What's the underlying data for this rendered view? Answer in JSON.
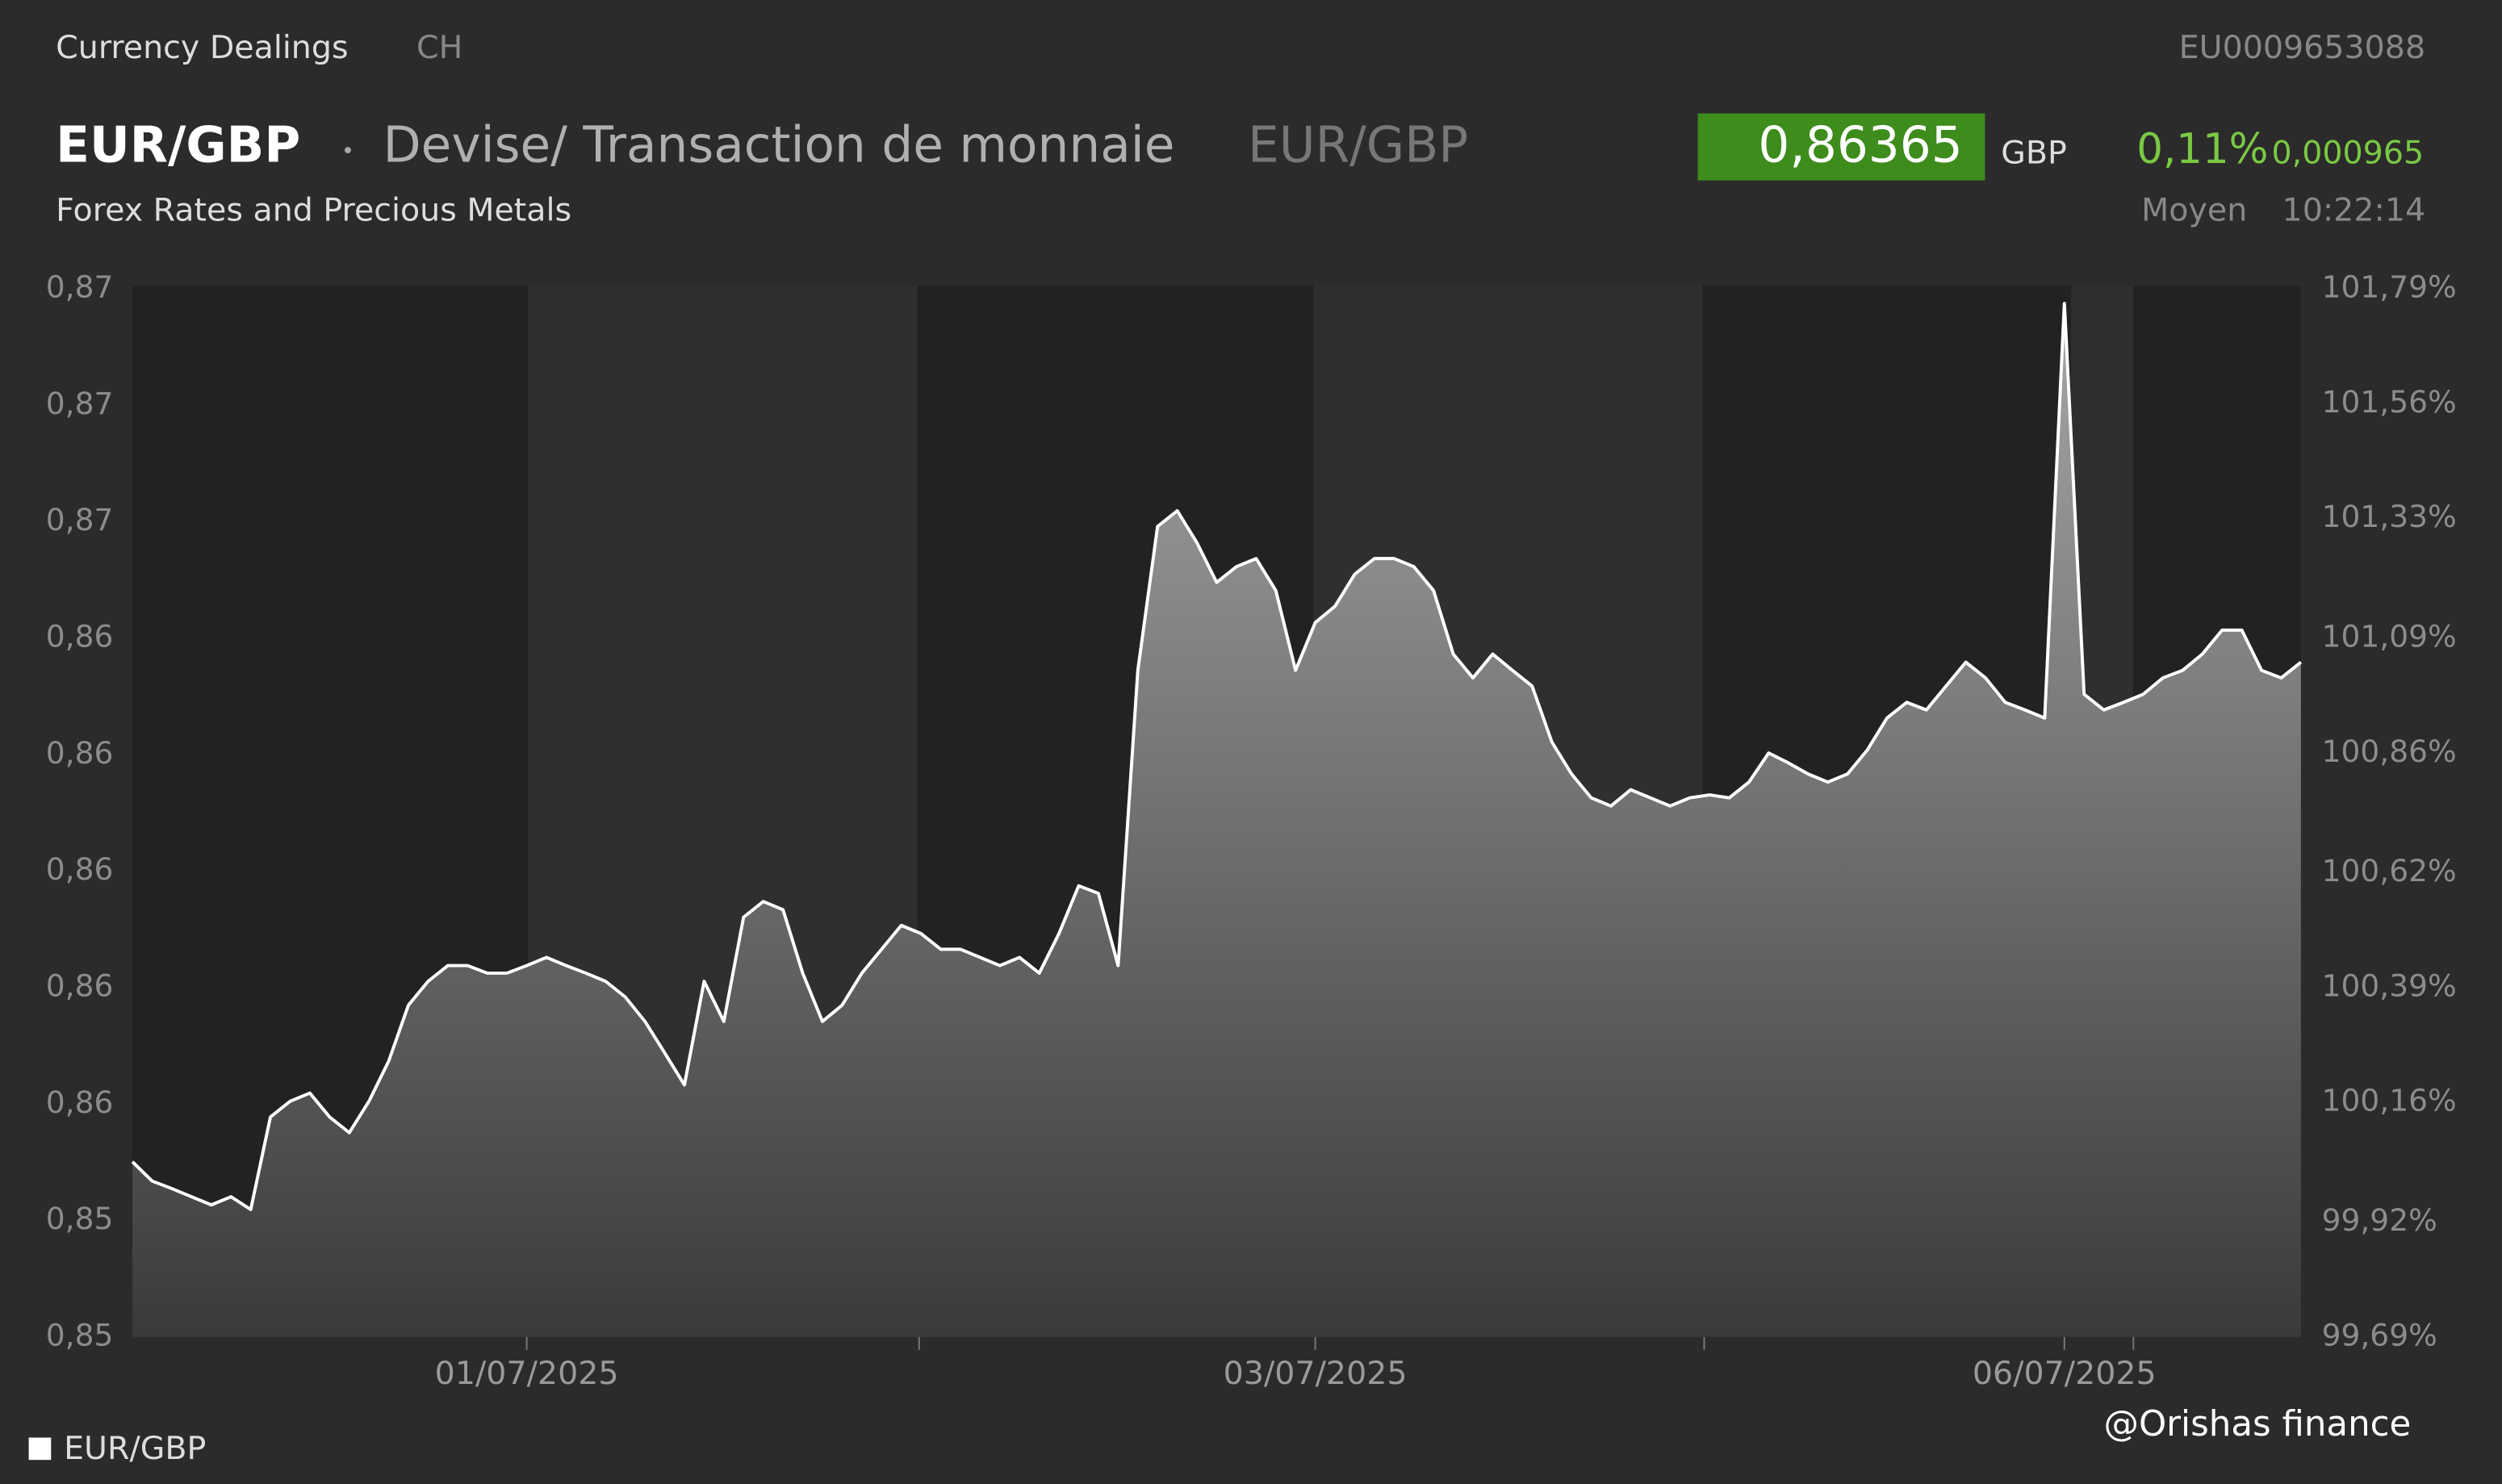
{
  "header": {
    "section": "Currency Dealings",
    "market": "CH",
    "isin": "EU0009653088",
    "symbol": "EUR/GBP",
    "description": "Devise/ Transaction de monnaie",
    "symbol_alt": "EUR/GBP",
    "subtitle": "Forex Rates and Precious Metals",
    "price": "0,86365",
    "currency": "GBP",
    "change_pct": "0,11%",
    "change_abs": "0,000965",
    "price_type": "Moyen",
    "time": "10:22:14"
  },
  "watermark": "@Orishas finance",
  "chart_data": {
    "type": "area",
    "categories": [
      null,
      null,
      null,
      null,
      null,
      null,
      null,
      null,
      null,
      null,
      null,
      null,
      null,
      null,
      null,
      null,
      null,
      null,
      null,
      null,
      "01/07/2025",
      null,
      null,
      null,
      null,
      null,
      null,
      null,
      null,
      null,
      null,
      null,
      null,
      null,
      null,
      null,
      null,
      null,
      null,
      null,
      null,
      null,
      null,
      null,
      null,
      null,
      null,
      null,
      null,
      null,
      null,
      null,
      null,
      null,
      null,
      null,
      null,
      null,
      null,
      null,
      "03/07/2025",
      null,
      null,
      null,
      null,
      null,
      null,
      null,
      null,
      null,
      null,
      null,
      null,
      null,
      null,
      null,
      null,
      null,
      null,
      null,
      null,
      null,
      null,
      null,
      null,
      null,
      null,
      null,
      null,
      null,
      null,
      null,
      null,
      null,
      null,
      null,
      null,
      null,
      "06/07/2025",
      null,
      null,
      null,
      null,
      null,
      null,
      null,
      null,
      null,
      null,
      null,
      null
    ],
    "series": [
      {
        "name": "EUR/GBP",
        "color": "#ffffff",
        "values": [
          0.85501,
          0.85468,
          0.85455,
          0.85441,
          0.85427,
          0.85441,
          0.85419,
          0.85578,
          0.85605,
          0.85619,
          0.85578,
          0.85551,
          0.85605,
          0.85674,
          0.8577,
          0.85811,
          0.85838,
          0.85838,
          0.85825,
          0.85825,
          0.85838,
          0.85852,
          0.85838,
          0.85825,
          0.85811,
          0.85784,
          0.85742,
          0.85688,
          0.85633,
          0.85811,
          0.85742,
          0.85921,
          0.85948,
          0.85934,
          0.85825,
          0.85742,
          0.8577,
          0.85825,
          0.85866,
          0.85907,
          0.85893,
          0.85866,
          0.85866,
          0.85852,
          0.85838,
          0.85852,
          0.85825,
          0.85893,
          0.85975,
          0.85962,
          0.85838,
          0.86345,
          0.86592,
          0.86619,
          0.86564,
          0.86496,
          0.86523,
          0.86537,
          0.86482,
          0.86345,
          0.86427,
          0.86455,
          0.8651,
          0.86537,
          0.86537,
          0.86523,
          0.86482,
          0.86373,
          0.86332,
          0.86373,
          0.86345,
          0.86318,
          0.86222,
          0.86167,
          0.86126,
          0.86112,
          0.8614,
          0.86126,
          0.86112,
          0.86126,
          0.86131,
          0.86126,
          0.86153,
          0.86203,
          0.86186,
          0.86167,
          0.86153,
          0.86167,
          0.86208,
          0.86263,
          0.8629,
          0.86277,
          0.86318,
          0.86359,
          0.86332,
          0.8629,
          0.86277,
          0.86263,
          0.86975,
          0.86304,
          0.86277,
          0.8629,
          0.86304,
          0.86332,
          0.86345,
          0.86373,
          0.86414,
          0.86414,
          0.86345,
          0.86332,
          0.86359
        ]
      }
    ],
    "ylim": [
      0.852,
      0.87
    ],
    "yticks": [
      {
        "value": 0.852,
        "label": "0,85"
      },
      {
        "value": 0.854,
        "label": "0,85"
      },
      {
        "value": 0.856,
        "label": "0,86"
      },
      {
        "value": 0.858,
        "label": "0,86"
      },
      {
        "value": 0.86,
        "label": "0,86"
      },
      {
        "value": 0.862,
        "label": "0,86"
      },
      {
        "value": 0.864,
        "label": "0,86"
      },
      {
        "value": 0.866,
        "label": "0,87"
      },
      {
        "value": 0.868,
        "label": "0,87"
      },
      {
        "value": 0.87,
        "label": "0,87"
      }
    ],
    "y2lim": [
      99.69,
      101.79
    ],
    "y2ticks": [
      {
        "value": 99.69,
        "label": "99,69%"
      },
      {
        "value": 99.92,
        "label": "99,92%"
      },
      {
        "value": 100.16,
        "label": "100,16%"
      },
      {
        "value": 100.39,
        "label": "100,39%"
      },
      {
        "value": 100.62,
        "label": "100,62%"
      },
      {
        "value": 100.86,
        "label": "100,86%"
      },
      {
        "value": 101.09,
        "label": "101,09%"
      },
      {
        "value": 101.33,
        "label": "101,33%"
      },
      {
        "value": 101.56,
        "label": "101,56%"
      },
      {
        "value": 101.79,
        "label": "101,79%"
      }
    ],
    "legend": "bottom-left"
  }
}
